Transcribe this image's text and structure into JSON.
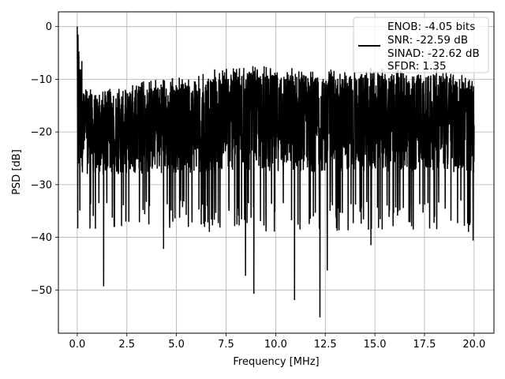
{
  "chart_data": {
    "type": "line",
    "xlabel": "Frequency [MHz]",
    "ylabel": "PSD [dB]",
    "xlim": [
      -0.95,
      21.0
    ],
    "ylim": [
      -58.2,
      2.8
    ],
    "xticks": [
      0.0,
      2.5,
      5.0,
      7.5,
      10.0,
      12.5,
      15.0,
      17.5,
      20.0
    ],
    "xtick_labels": [
      "0.0",
      "2.5",
      "5.0",
      "7.5",
      "10.0",
      "12.5",
      "15.0",
      "17.5",
      "20.0"
    ],
    "yticks": [
      0,
      -10,
      -20,
      -30,
      -40,
      -50
    ],
    "ytick_labels": [
      "0",
      "−10",
      "−20",
      "−30",
      "−40",
      "−50"
    ],
    "grid": true,
    "legend": {
      "placement": "upper right",
      "entries": [
        "ENOB: -4.05 bits",
        "SNR: -22.59 dB",
        "SINAD: -22.62 dB",
        "SFDR: 1.35"
      ]
    },
    "series": [
      {
        "color": "#000000",
        "x_range": [
          0.0,
          20.0
        ],
        "peak": {
          "x": 0.0,
          "y": 0.0
        },
        "typical_band_db": [
          -31,
          -9
        ],
        "upper_envelope": {
          "x": [
            0.0,
            0.3,
            1.0,
            2.0,
            3.0,
            4.0,
            5.0,
            6.0,
            7.0,
            8.0,
            9.0,
            10.0,
            11.0,
            12.0,
            13.0,
            14.0,
            15.0,
            16.0,
            17.0,
            18.0,
            19.0,
            20.0
          ],
          "y": [
            0.0,
            -11.0,
            -12.0,
            -11.5,
            -10.5,
            -10.0,
            -9.5,
            -9.5,
            -8.0,
            -7.5,
            -7.5,
            -7.5,
            -7.5,
            -8.5,
            -8.0,
            -8.5,
            -7.5,
            -8.0,
            -9.0,
            -7.5,
            -9.0,
            -9.5
          ]
        },
        "deep_nulls": [
          {
            "x": 1.33,
            "y": -49.3
          },
          {
            "x": 4.35,
            "y": -42.2
          },
          {
            "x": 8.48,
            "y": -47.3
          },
          {
            "x": 8.9,
            "y": -50.7
          },
          {
            "x": 10.95,
            "y": -51.9
          },
          {
            "x": 12.23,
            "y": -55.2
          },
          {
            "x": 12.6,
            "y": -46.3
          },
          {
            "x": 14.8,
            "y": -41.5
          },
          {
            "x": 19.95,
            "y": -40.6
          }
        ]
      }
    ]
  }
}
